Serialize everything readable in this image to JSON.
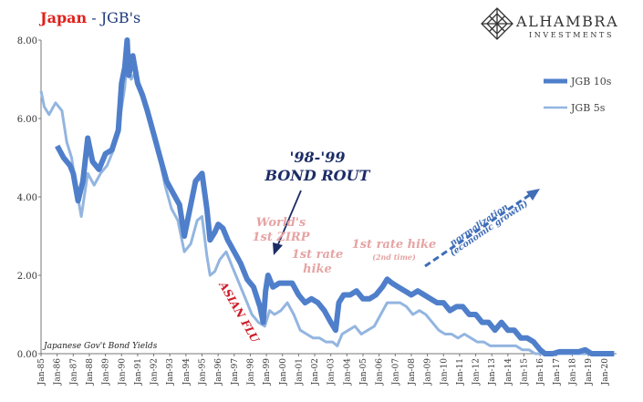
{
  "header": {
    "title_country": "Japan",
    "title_dash": " - ",
    "title_series": "JGB's"
  },
  "brand": {
    "name": "ALHAMBRA",
    "tagline": "INVESTMENTS"
  },
  "colors": {
    "jgb10": "#4f7fca",
    "jgb5": "#93b5e0",
    "annotation_pink": "#e6a4a4",
    "asian_flu": "#cc1f2a",
    "title_red": "#e0201b",
    "title_blue": "#1f3a7a",
    "arrow": "#3f6db8"
  },
  "chart_data": {
    "type": "line",
    "title": "Japan - JGB's",
    "source_note": "Japanese Gov't Bond Yields",
    "ylim": [
      0,
      8
    ],
    "yticks": [
      "0.00",
      "2.00",
      "4.00",
      "6.00",
      "8.00"
    ],
    "x_tick_labels": [
      "Jan-85",
      "Jan-86",
      "Jan-87",
      "Jan-88",
      "Jan-89",
      "Jan-90",
      "Jan-91",
      "Jan-92",
      "Jan-93",
      "Jan-94",
      "Jan-95",
      "Jan-96",
      "Jan-97",
      "Jan-98",
      "Jan-99",
      "Jan-00",
      "Jan-01",
      "Jan-02",
      "Jan-03",
      "Jan-04",
      "Jan-05",
      "Jan-06",
      "Jan-07",
      "Jan-08",
      "Jan-09",
      "Jan-10",
      "Jan-11",
      "Jan-12",
      "Jan-13",
      "Jan-14",
      "Jan-15",
      "Jan-16",
      "Jan-17",
      "Jan-18",
      "Jan-19",
      "Jan-20"
    ],
    "legend": {
      "placement": "right",
      "entries": [
        "JGB 10s",
        "JGB 5s"
      ]
    },
    "series": [
      {
        "name": "JGB 10s",
        "x": [
          1986.0,
          1986.4,
          1986.8,
          1987.0,
          1987.3,
          1987.6,
          1987.9,
          1988.2,
          1988.6,
          1989.0,
          1989.4,
          1989.8,
          1990.0,
          1990.2,
          1990.35,
          1990.45,
          1990.7,
          1991.0,
          1991.3,
          1991.6,
          1992.0,
          1992.4,
          1992.8,
          1993.2,
          1993.6,
          1993.9,
          1994.2,
          1994.6,
          1995.0,
          1995.3,
          1995.5,
          1995.8,
          1996.0,
          1996.3,
          1996.6,
          1997.0,
          1997.4,
          1997.8,
          1998.2,
          1998.6,
          1998.8,
          1998.95,
          1999.1,
          1999.4,
          1999.8,
          2000.2,
          2000.6,
          2001.0,
          2001.4,
          2001.8,
          2002.2,
          2002.6,
          2003.0,
          2003.3,
          2003.5,
          2003.8,
          2004.2,
          2004.6,
          2005.0,
          2005.4,
          2005.8,
          2006.2,
          2006.5,
          2006.8,
          2007.2,
          2007.6,
          2008.0,
          2008.4,
          2008.8,
          2009.2,
          2009.6,
          2010.0,
          2010.4,
          2010.8,
          2011.2,
          2011.6,
          2012.0,
          2012.4,
          2012.8,
          2013.2,
          2013.6,
          2014.0,
          2014.4,
          2014.8,
          2015.2,
          2015.6,
          2016.0,
          2016.3,
          2016.5,
          2016.8,
          2017.2,
          2017.6,
          2018.0,
          2018.4,
          2018.8,
          2019.2,
          2019.6,
          2020.0,
          2020.3,
          2020.6
        ],
        "values": [
          5.3,
          5.0,
          4.8,
          4.6,
          3.9,
          4.4,
          5.5,
          4.9,
          4.7,
          5.1,
          5.2,
          5.7,
          6.9,
          7.3,
          8.0,
          7.1,
          7.6,
          6.9,
          6.6,
          6.2,
          5.6,
          5.0,
          4.4,
          4.1,
          3.8,
          3.0,
          3.6,
          4.4,
          4.6,
          3.7,
          2.9,
          3.1,
          3.3,
          3.2,
          2.9,
          2.6,
          2.3,
          1.9,
          1.7,
          1.2,
          0.8,
          1.6,
          2.0,
          1.7,
          1.8,
          1.8,
          1.8,
          1.5,
          1.3,
          1.4,
          1.3,
          1.1,
          0.8,
          0.6,
          1.3,
          1.5,
          1.5,
          1.6,
          1.4,
          1.4,
          1.5,
          1.7,
          1.9,
          1.8,
          1.7,
          1.6,
          1.5,
          1.6,
          1.5,
          1.4,
          1.3,
          1.3,
          1.1,
          1.2,
          1.2,
          1.0,
          1.0,
          0.8,
          0.8,
          0.6,
          0.8,
          0.6,
          0.6,
          0.4,
          0.4,
          0.3,
          0.1,
          -0.1,
          -0.2,
          0.0,
          0.05,
          0.05,
          0.05,
          0.05,
          0.1,
          0.0,
          -0.1,
          0.0,
          -0.05,
          0.0
        ]
      },
      {
        "name": "JGB 5s",
        "x": [
          1985.0,
          1985.2,
          1985.5,
          1985.9,
          1986.3,
          1986.6,
          1986.9,
          1987.2,
          1987.5,
          1987.9,
          1988.3,
          1988.7,
          1989.1,
          1989.5,
          1989.9,
          1990.2,
          1990.4,
          1990.6,
          1990.9,
          1991.2,
          1991.5,
          1991.9,
          1992.3,
          1992.7,
          1993.1,
          1993.5,
          1993.9,
          1994.3,
          1994.7,
          1995.0,
          1995.3,
          1995.5,
          1995.8,
          1996.1,
          1996.5,
          1996.9,
          1997.3,
          1997.7,
          1998.1,
          1998.5,
          1998.9,
          1999.2,
          1999.5,
          1999.9,
          2000.3,
          2000.7,
          2001.1,
          2001.5,
          2001.9,
          2002.3,
          2002.7,
          2003.1,
          2003.4,
          2003.7,
          2004.1,
          2004.5,
          2004.9,
          2005.3,
          2005.7,
          2006.1,
          2006.5,
          2006.9,
          2007.3,
          2007.7,
          2008.1,
          2008.5,
          2008.9,
          2009.3,
          2009.7,
          2010.1,
          2010.5,
          2010.9,
          2011.3,
          2011.7,
          2012.1,
          2012.5,
          2012.9,
          2013.3,
          2013.7,
          2014.1,
          2014.5,
          2014.9,
          2015.3,
          2015.7,
          2016.0,
          2016.4,
          2016.8,
          2017.2,
          2017.6,
          2018.0,
          2018.4,
          2018.8,
          2019.2,
          2019.6,
          2020.0,
          2020.4
        ],
        "values": [
          6.7,
          6.3,
          6.1,
          6.4,
          6.2,
          5.4,
          5.0,
          4.2,
          3.5,
          4.6,
          4.3,
          4.6,
          4.8,
          5.2,
          6.0,
          6.8,
          7.8,
          7.0,
          7.2,
          6.6,
          6.4,
          5.8,
          5.1,
          4.3,
          3.7,
          3.4,
          2.6,
          2.8,
          3.4,
          3.5,
          2.5,
          2.0,
          2.1,
          2.4,
          2.6,
          2.2,
          1.8,
          1.4,
          1.0,
          0.8,
          0.7,
          1.1,
          1.0,
          1.1,
          1.3,
          1.0,
          0.6,
          0.5,
          0.4,
          0.4,
          0.3,
          0.3,
          0.2,
          0.5,
          0.6,
          0.7,
          0.5,
          0.6,
          0.7,
          1.0,
          1.3,
          1.3,
          1.3,
          1.2,
          1.0,
          1.1,
          1.0,
          0.8,
          0.6,
          0.5,
          0.5,
          0.4,
          0.5,
          0.4,
          0.3,
          0.3,
          0.2,
          0.2,
          0.2,
          0.2,
          0.2,
          0.1,
          0.1,
          0.0,
          -0.1,
          -0.25,
          -0.2,
          -0.1,
          -0.1,
          -0.1,
          -0.1,
          -0.15,
          -0.2,
          -0.3,
          -0.15,
          -0.1
        ]
      }
    ],
    "annotations": [
      {
        "text": "'98-'99",
        "style": "bold-italic"
      },
      {
        "text": "BOND ROUT",
        "style": "bold-italic"
      },
      {
        "text": "World's"
      },
      {
        "text": "1st ZIRP"
      },
      {
        "text": "1st rate"
      },
      {
        "text": "hike"
      },
      {
        "text": "1st rate hike"
      },
      {
        "text": "(2nd time)"
      },
      {
        "text": "normalization"
      },
      {
        "text": "(economic growth)"
      },
      {
        "text": "ASIAN FLU"
      }
    ]
  }
}
